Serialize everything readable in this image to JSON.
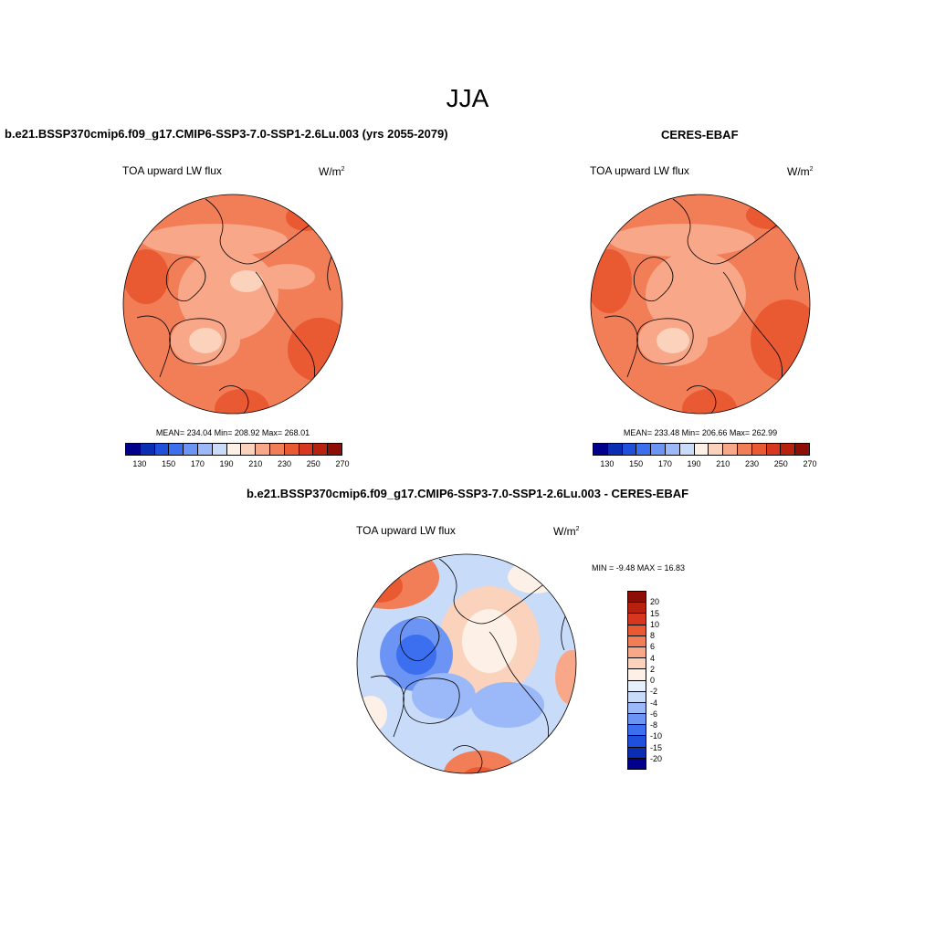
{
  "main_title": "JJA",
  "colors": {
    "abs_levels": [
      "#00008c",
      "#0a2db4",
      "#1e50dc",
      "#3c6ef0",
      "#6b94f5",
      "#9bb8f8",
      "#c8dcfa",
      "#fdf0e6",
      "#fbd2bc",
      "#f8a888",
      "#f27e58",
      "#ea5a32",
      "#d7371e",
      "#b9210f",
      "#8c0e06"
    ],
    "diff_levels": [
      "#00008c",
      "#0a2db4",
      "#1e50dc",
      "#3c6ef0",
      "#6b94f5",
      "#9bb8f8",
      "#c8dcfa",
      "#e6f0fa",
      "#fdf0e6",
      "#fbd2bc",
      "#f8a888",
      "#f27e58",
      "#ea5a32",
      "#d7371e",
      "#b9210f",
      "#8c0e06"
    ]
  },
  "panels": [
    {
      "title": "b.e21.BSSP370cmip6.f09_g17.CMIP6-SSP3-7.0-SSP1-2.6Lu.003 (yrs 2055-2079)",
      "variable": "TOA upward LW flux",
      "units": "W/m",
      "units_exp": "2",
      "stats": "MEAN= 234.04  Min= 208.92  Max= 268.01",
      "tick_labels": [
        "130",
        "150",
        "170",
        "190",
        "210",
        "230",
        "250",
        "270"
      ]
    },
    {
      "title": "CERES-EBAF",
      "variable": "TOA upward LW flux",
      "units": "W/m",
      "units_exp": "2",
      "stats": "MEAN= 233.48  Min= 206.66  Max= 262.99",
      "tick_labels": [
        "130",
        "150",
        "170",
        "190",
        "210",
        "230",
        "250",
        "270"
      ]
    },
    {
      "title": "b.e21.BSSP370cmip6.f09_g17.CMIP6-SSP3-7.0-SSP1-2.6Lu.003 - CERES-EBAF",
      "variable": "TOA upward LW flux",
      "units": "W/m",
      "units_exp": "2",
      "stats": "MIN =  -9.48 MAX =  16.83",
      "tick_labels": [
        "20",
        "15",
        "10",
        "8",
        "6",
        "4",
        "2",
        "0",
        "-2",
        "-4",
        "-6",
        "-8",
        "-10",
        "-15",
        "-20"
      ]
    }
  ]
}
